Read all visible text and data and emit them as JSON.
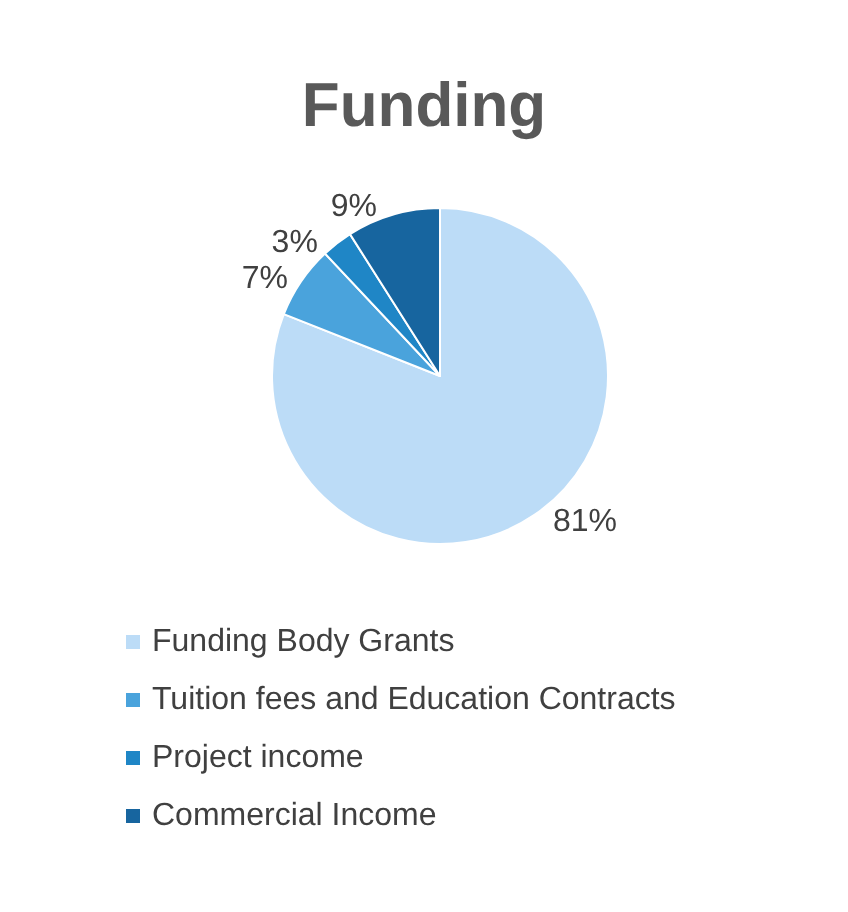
{
  "chart_data": {
    "type": "pie",
    "title": "Funding",
    "categories": [
      "Funding Body Grants",
      "Tuition fees and Education Contracts",
      "Project income",
      "Commercial Income"
    ],
    "values": [
      81,
      7,
      3,
      9
    ],
    "colors": [
      "#bcdcf7",
      "#4aa3dc",
      "#1f86c6",
      "#17659f"
    ],
    "value_labels": [
      "81%",
      "7%",
      "3%",
      "9%"
    ],
    "legend": "bottom"
  }
}
